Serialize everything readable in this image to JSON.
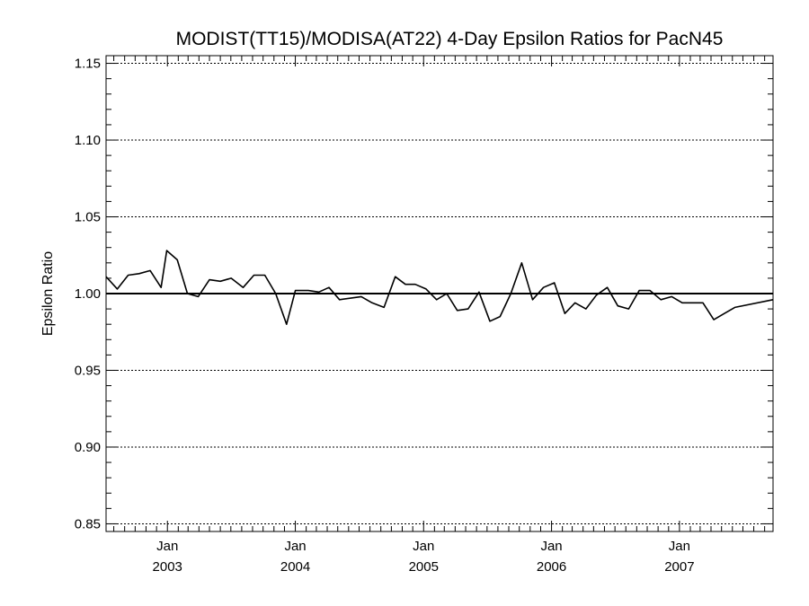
{
  "chart_data": {
    "type": "line",
    "title": "MODIST(TT15)/MODISA(AT22) 4-Day Epsilon Ratios for PacN45",
    "ylabel": "Epsilon Ratio",
    "xlabel": "",
    "xlim": [
      "2002-07-10",
      "2007-09-25"
    ],
    "ylim": [
      0.845,
      1.155
    ],
    "yticks": [
      {
        "value": 0.85,
        "label": "0.85"
      },
      {
        "value": 0.9,
        "label": "0.90"
      },
      {
        "value": 0.95,
        "label": "0.95"
      },
      {
        "value": 1.0,
        "label": "1.00"
      },
      {
        "value": 1.05,
        "label": "1.05"
      },
      {
        "value": 1.1,
        "label": "1.10"
      },
      {
        "value": 1.15,
        "label": "1.15"
      }
    ],
    "xticks": [
      {
        "date": "2003-01-01",
        "month": "Jan",
        "year": "2003"
      },
      {
        "date": "2004-01-01",
        "month": "Jan",
        "year": "2004"
      },
      {
        "date": "2005-01-01",
        "month": "Jan",
        "year": "2005"
      },
      {
        "date": "2006-01-01",
        "month": "Jan",
        "year": "2006"
      },
      {
        "date": "2007-01-01",
        "month": "Jan",
        "year": "2007"
      }
    ],
    "grid": "dotted horizontal at major y ticks",
    "reference_line": 1.0,
    "series": [
      {
        "x": [
          "2002-07-10",
          "2002-08-11",
          "2002-09-11",
          "2002-10-12",
          "2002-11-13",
          "2002-12-14",
          "2002-12-30",
          "2003-01-29",
          "2003-02-27",
          "2003-03-30",
          "2003-05-01",
          "2003-06-01",
          "2003-07-02",
          "2003-08-05",
          "2003-09-05",
          "2003-10-06",
          "2003-11-06",
          "2003-12-07",
          "2004-01-01",
          "2004-02-07",
          "2004-03-08",
          "2004-04-06",
          "2004-05-06",
          "2004-06-07",
          "2004-07-07",
          "2004-08-07",
          "2004-09-10",
          "2004-10-12",
          "2004-11-10",
          "2004-12-08",
          "2005-01-08",
          "2005-02-07",
          "2005-03-08",
          "2005-04-07",
          "2005-05-08",
          "2005-06-08",
          "2005-07-09",
          "2005-08-07",
          "2005-09-07",
          "2005-10-08",
          "2005-11-08",
          "2005-12-09",
          "2006-01-09",
          "2006-02-08",
          "2006-03-09",
          "2006-04-09",
          "2006-05-09",
          "2006-06-09",
          "2006-07-09",
          "2006-08-09",
          "2006-09-08",
          "2006-10-09",
          "2006-11-09",
          "2006-12-10",
          "2007-01-09",
          "2007-02-09",
          "2007-03-09",
          "2007-04-09",
          "2007-05-09",
          "2007-06-08",
          "2007-09-25"
        ],
        "values": [
          1.011,
          1.003,
          1.012,
          1.013,
          1.015,
          1.004,
          1.028,
          1.022,
          1.0,
          0.998,
          1.009,
          1.008,
          1.01,
          1.004,
          1.012,
          1.012,
          1.0,
          0.98,
          1.002,
          1.002,
          1.001,
          1.004,
          0.996,
          0.997,
          0.998,
          0.994,
          0.991,
          1.011,
          1.006,
          1.006,
          1.003,
          0.996,
          1.0,
          0.989,
          0.99,
          1.001,
          0.982,
          0.985,
          1.0,
          1.02,
          0.996,
          1.004,
          1.007,
          0.987,
          0.994,
          0.99,
          0.999,
          1.004,
          0.992,
          0.99,
          1.002,
          1.002,
          0.996,
          0.998,
          0.994,
          0.994,
          0.994,
          0.983,
          0.987,
          0.991,
          0.996
        ]
      }
    ]
  }
}
